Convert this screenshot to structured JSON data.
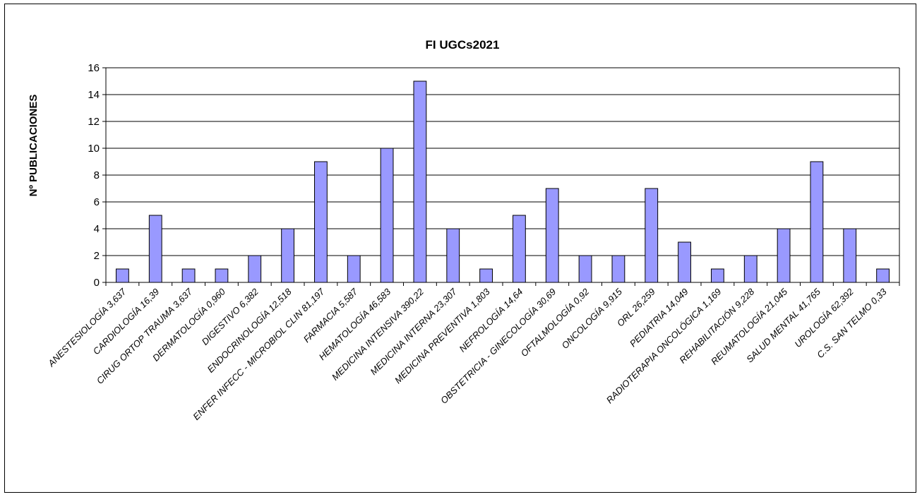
{
  "chart_data": {
    "type": "bar",
    "title": "FI UGCs2021",
    "xlabel": "",
    "ylabel": "Nº PUBLICACIONES",
    "ylim": [
      0,
      16
    ],
    "ytick_step": 2,
    "grid": true,
    "legend": "none",
    "bar_color": "#9999ff",
    "bar_border_color": "#000000",
    "categories": [
      "ANESTESIOLOGÍA 3,637",
      "CARDIOLOGÍA  16,39",
      "CIRUG ORTOP TRAUMA 3,637",
      "DERMATOLOGÍA 0,960",
      "DIGESTIVO 6,382",
      "ENDOCRINOLOGÍA  12,518",
      "ENFER INFECC - MICROBIOL CLIN 81,197",
      "FARMACIA  5,587",
      "HEMATOLOGÍA  46,583",
      "MEDICINA INTENSIVA  390,22",
      "MEDICINA INTERNA  23,307",
      "MEDICINA PREVENTIVA 1,803",
      "NEFROLOGÍA  14,64",
      "OBSTETRICIA - GINECOLOGÍA 30,69",
      "OFTALMOLOGÍA  0,92",
      "ONCOLOGÍA 9,915",
      "ORL  26,259",
      "PEDIATRIA  14,049",
      "RADIOTERAPIA ONCOLÓGICA 1,169",
      "REHABILITACIÓN 9,228",
      "REUMATOLOGÍA 21,045",
      "SALUD MENTAL  41,765",
      "UROLOGÍA 62,392",
      "C.S. SAN TELMO 0,33"
    ],
    "values": [
      1,
      5,
      1,
      1,
      2,
      4,
      9,
      2,
      10,
      15,
      4,
      1,
      5,
      7,
      2,
      2,
      7,
      3,
      1,
      2,
      4,
      9,
      4,
      1
    ]
  }
}
